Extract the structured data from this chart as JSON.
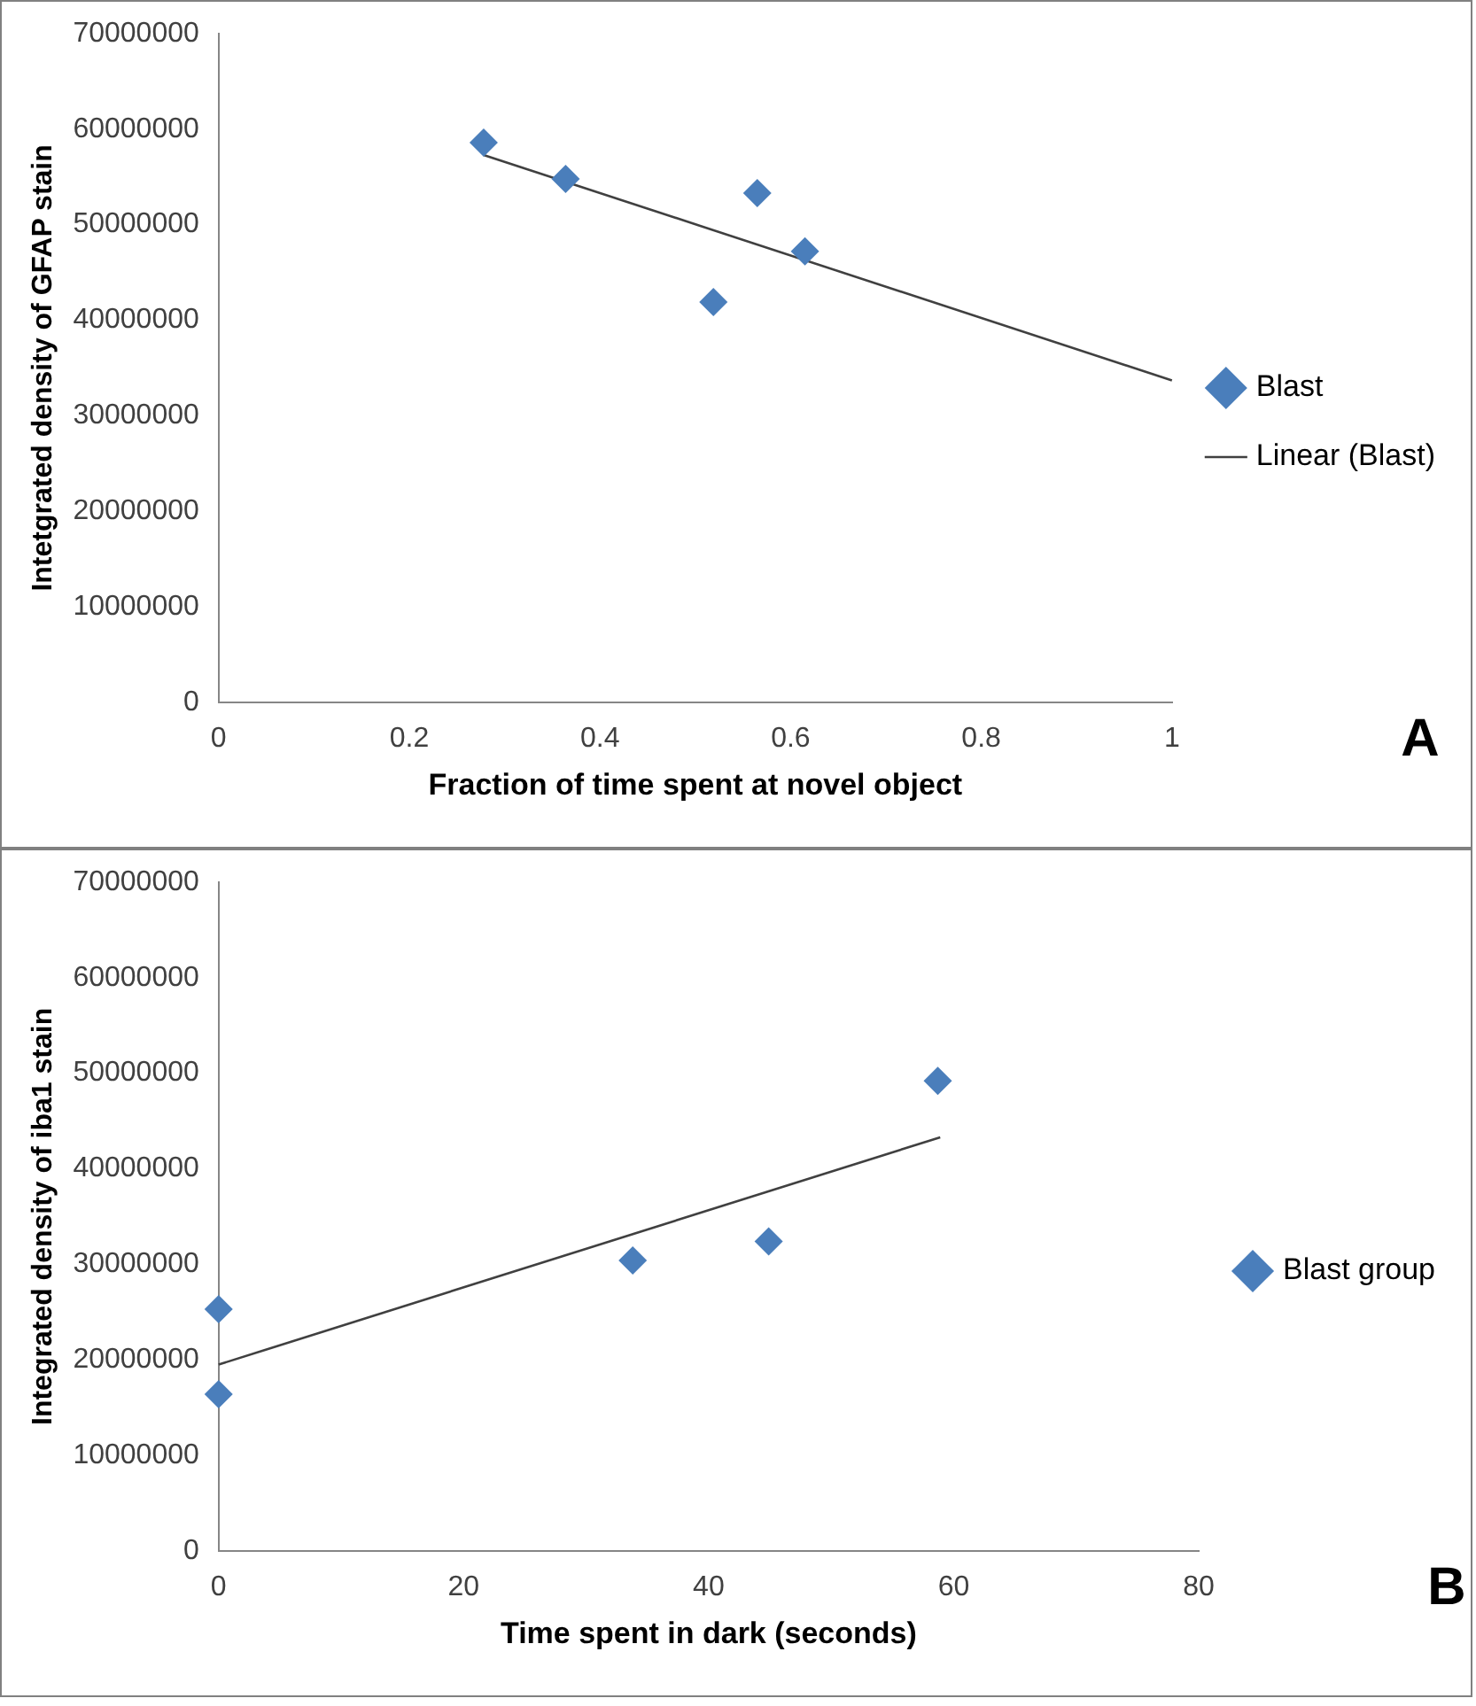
{
  "chart_data": [
    {
      "type": "scatter",
      "xlabel": "Fraction of time spent at novel object",
      "ylabel": "Intetgrated density of GFAP stain",
      "xlim": [
        0,
        1
      ],
      "xticks": [
        0,
        0.2,
        0.4,
        0.6,
        0.8,
        1
      ],
      "ylim": [
        0,
        70000000
      ],
      "yticks": [
        0,
        10000000,
        20000000,
        30000000,
        40000000,
        50000000,
        60000000,
        70000000
      ],
      "grid": false,
      "legend": "right",
      "annotations": [
        "A"
      ],
      "series": [
        {
          "name": "Blast",
          "type": "scatter",
          "marker": "diamond",
          "color": "#4a7ebb",
          "x": [
            0.278,
            0.364,
            0.519,
            0.565,
            0.615
          ],
          "values": [
            58600000,
            54800000,
            41900000,
            53300000,
            47200000
          ]
        },
        {
          "name": "Linear (Blast)",
          "type": "line",
          "marker": "none",
          "line_style": "solid",
          "color": "#404040",
          "x": [
            0.278,
            1
          ],
          "values": [
            57300000,
            33700000
          ]
        }
      ]
    },
    {
      "type": "scatter",
      "xlabel": "Time spent in dark (seconds)",
      "ylabel": "Integrated density of iba1 stain",
      "xlim": [
        0,
        80
      ],
      "xticks": [
        0,
        20,
        40,
        60,
        80
      ],
      "ylim": [
        0,
        70000000
      ],
      "yticks": [
        0,
        10000000,
        20000000,
        30000000,
        40000000,
        50000000,
        60000000,
        70000000
      ],
      "grid": false,
      "legend": "right",
      "annotations": [
        "B"
      ],
      "series": [
        {
          "name": "Blast group",
          "type": "scatter",
          "marker": "diamond",
          "color": "#4a7ebb",
          "x": [
            0,
            0,
            33.8,
            44.9,
            58.7
          ],
          "values": [
            25300000,
            16400000,
            30400000,
            32400000,
            49200000
          ]
        },
        {
          "type": "line",
          "marker": "none",
          "line_style": "solid",
          "color": "#404040",
          "x": [
            0,
            58.9
          ],
          "values": [
            19500000,
            43300000
          ]
        }
      ]
    }
  ]
}
